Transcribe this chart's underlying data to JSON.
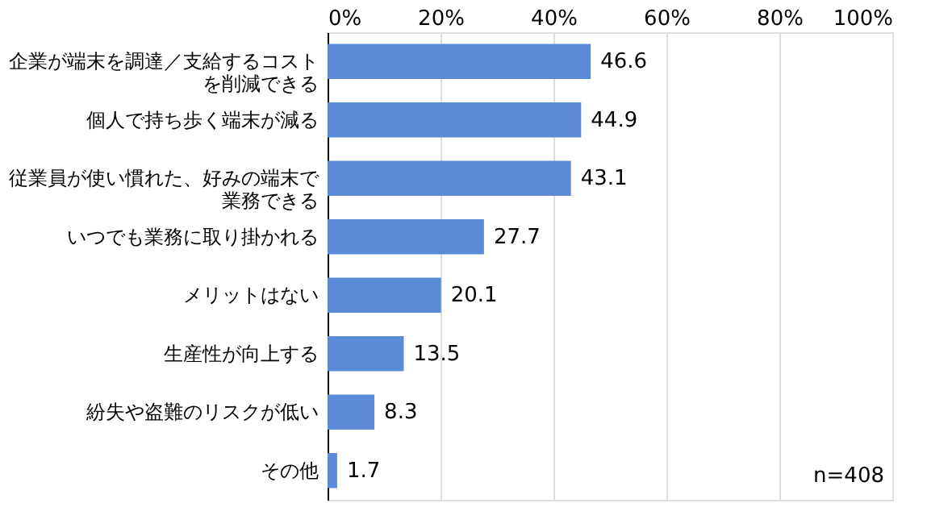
{
  "chart_data": {
    "type": "bar",
    "orientation": "horizontal",
    "categories": [
      "企業が端末を調達／支給するコストを削減できる",
      "個人で持ち歩く端末が減る",
      "従業員が使い慣れた、好みの端末で業務できる",
      "いつでも業務に取り掛かれる",
      "メリットはない",
      "生産性が向上する",
      "紛失や盗難のリスクが低い",
      "その他"
    ],
    "values": [
      46.6,
      44.9,
      43.1,
      27.7,
      20.1,
      13.5,
      8.3,
      1.7
    ],
    "color": "#5b8bd6",
    "xlim": [
      0,
      100
    ],
    "xticks": [
      {
        "value": 0,
        "label": "0%"
      },
      {
        "value": 20,
        "label": "20%"
      },
      {
        "value": 40,
        "label": "40%"
      },
      {
        "value": 60,
        "label": "60%"
      },
      {
        "value": 80,
        "label": "80%"
      },
      {
        "value": 100,
        "label": "100%"
      }
    ],
    "grid": "x",
    "data_labels": true,
    "annotations": [
      "n=408"
    ]
  }
}
